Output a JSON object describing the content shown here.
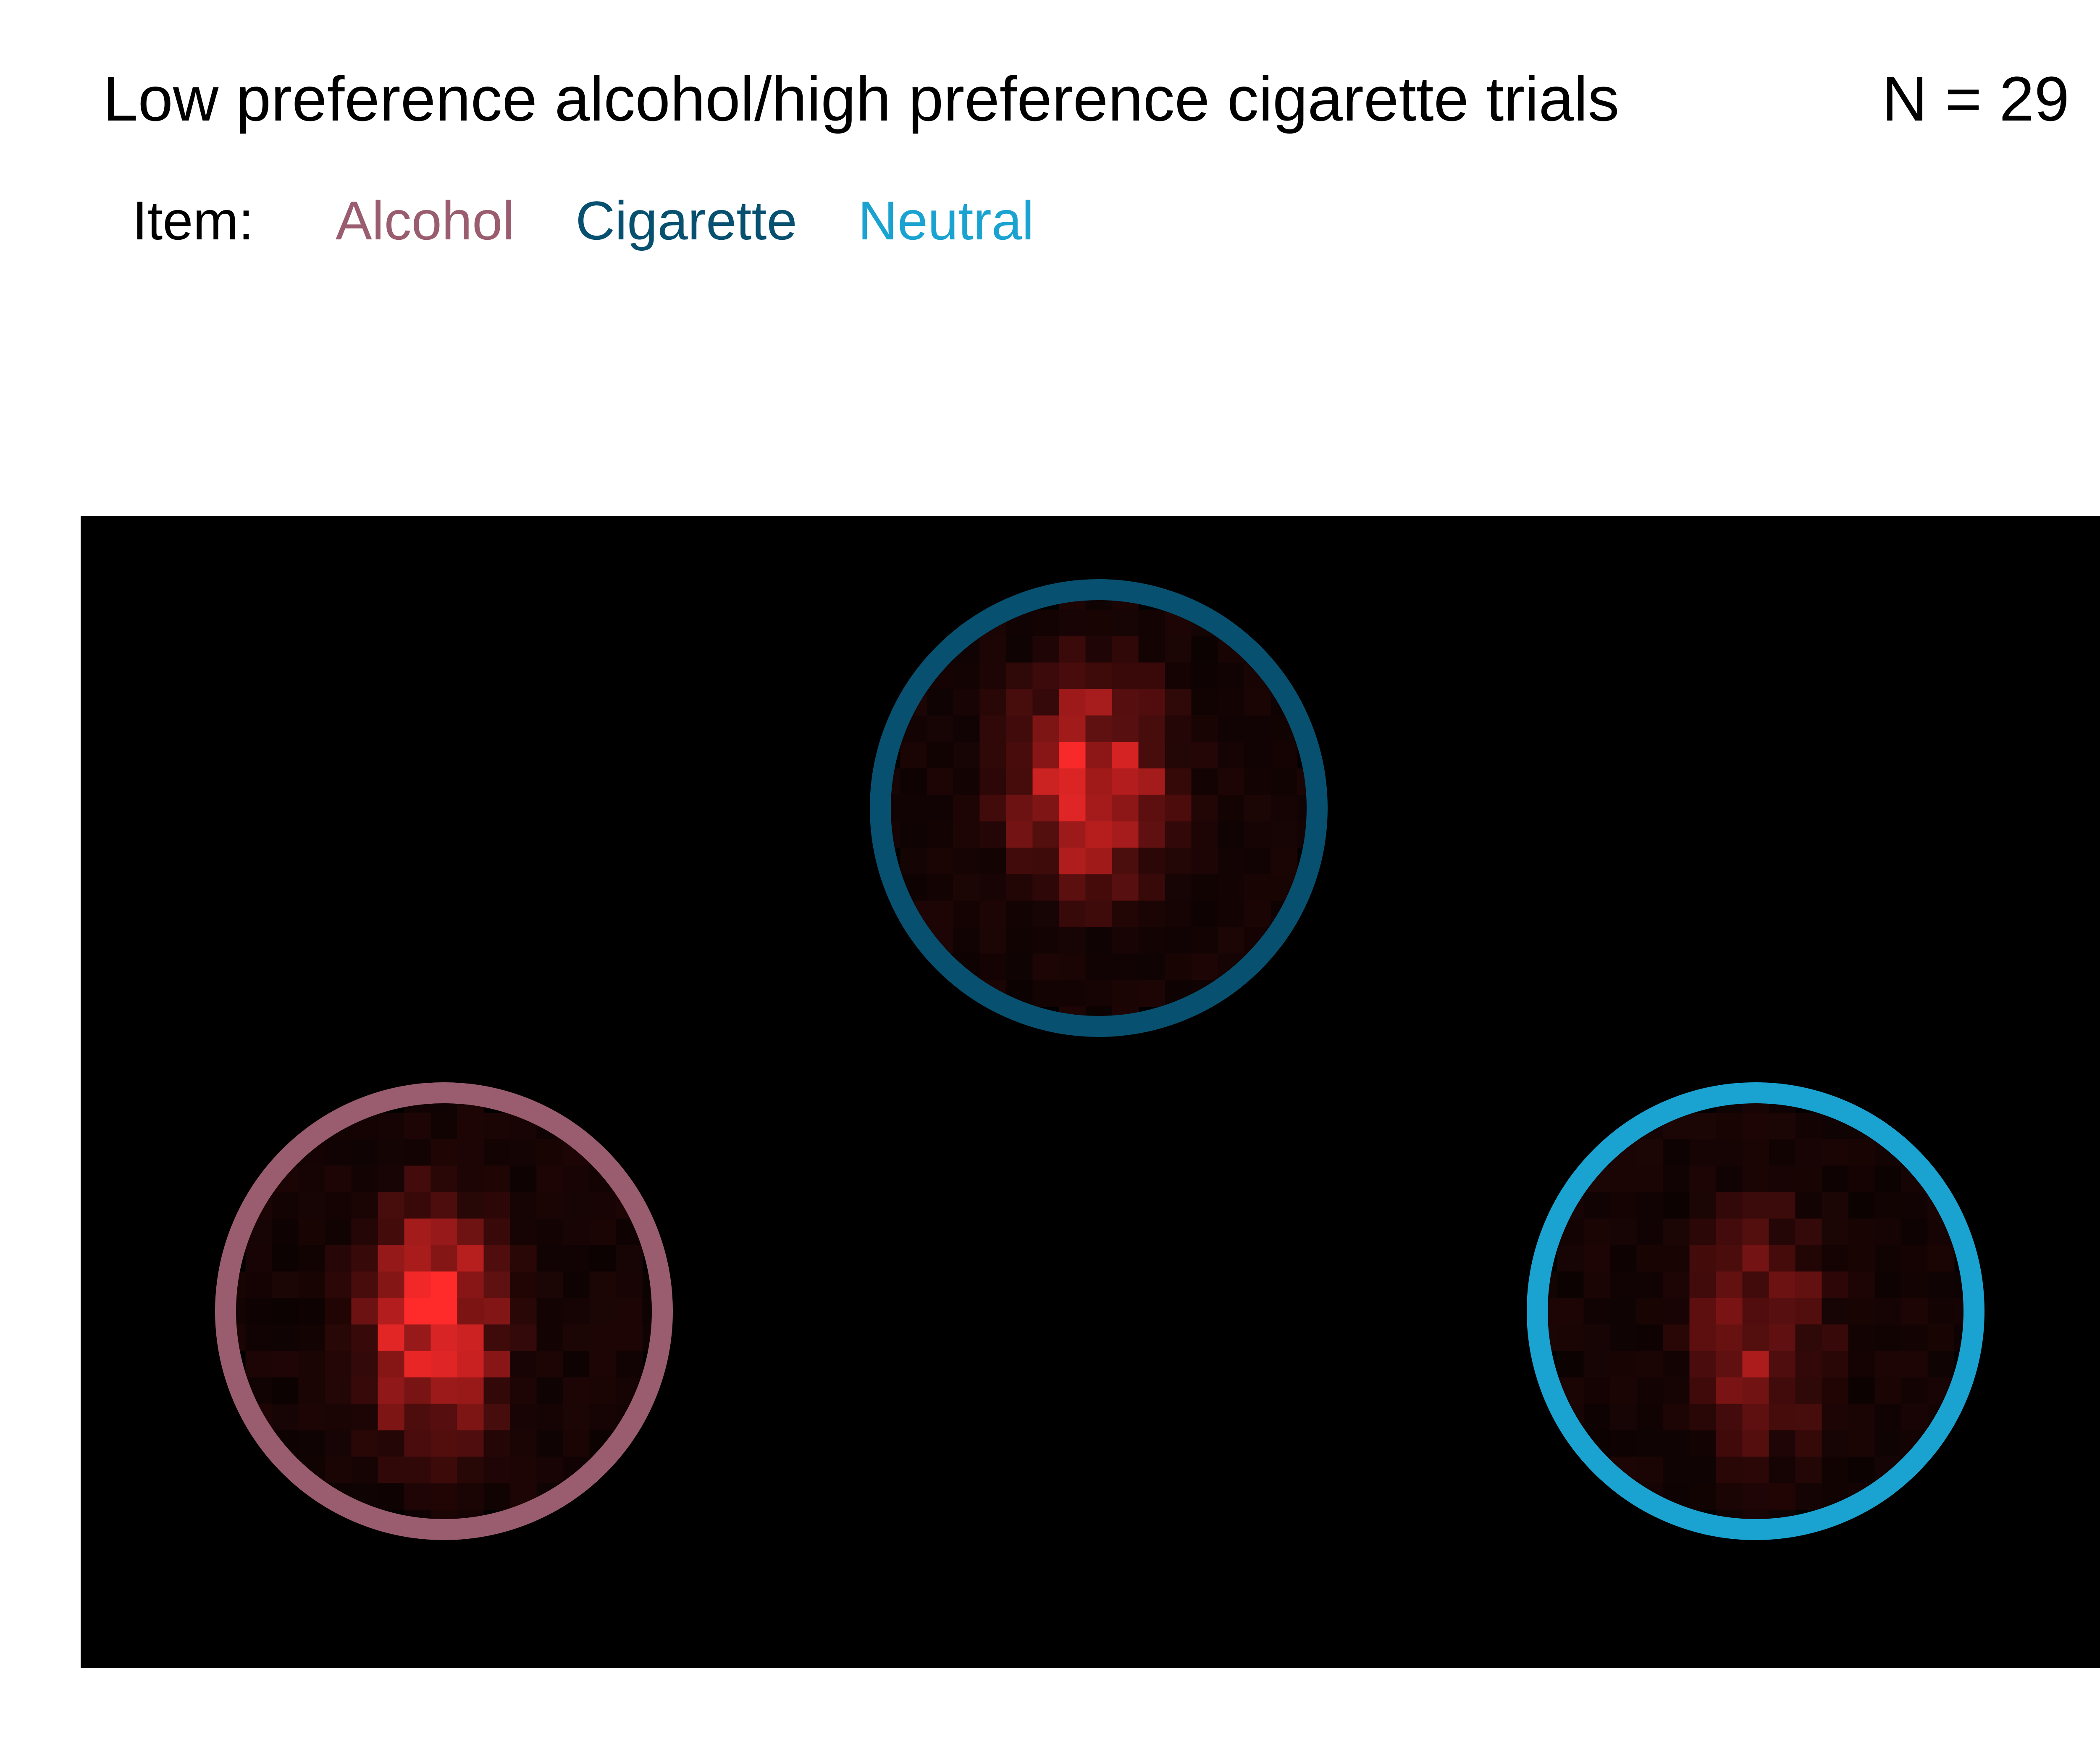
{
  "header": {
    "title": "Low preference alcohol/high preference cigarette trials",
    "n_label": "N = 29"
  },
  "legend": {
    "title": "Item:",
    "entries": [
      {
        "label": "Alcohol",
        "color": "#9a5d6f"
      },
      {
        "label": "Cigarette",
        "color": "#07506f"
      },
      {
        "label": "Neutral",
        "color": "#1aa3d1"
      }
    ]
  },
  "chart_data": {
    "type": "heatmap",
    "background": "#000000",
    "colormap": [
      "#000000",
      "#ff2a2a"
    ],
    "aois": [
      {
        "item": "Cigarette",
        "color": "#07506f"
      },
      {
        "item": "Alcohol",
        "color": "#9a5d6f"
      },
      {
        "item": "Neutral",
        "color": "#1aa3d1"
      }
    ],
    "peak_intensity": {
      "Cigarette": 0.85,
      "Alcohol": 0.95,
      "Neutral": 0.5
    }
  }
}
